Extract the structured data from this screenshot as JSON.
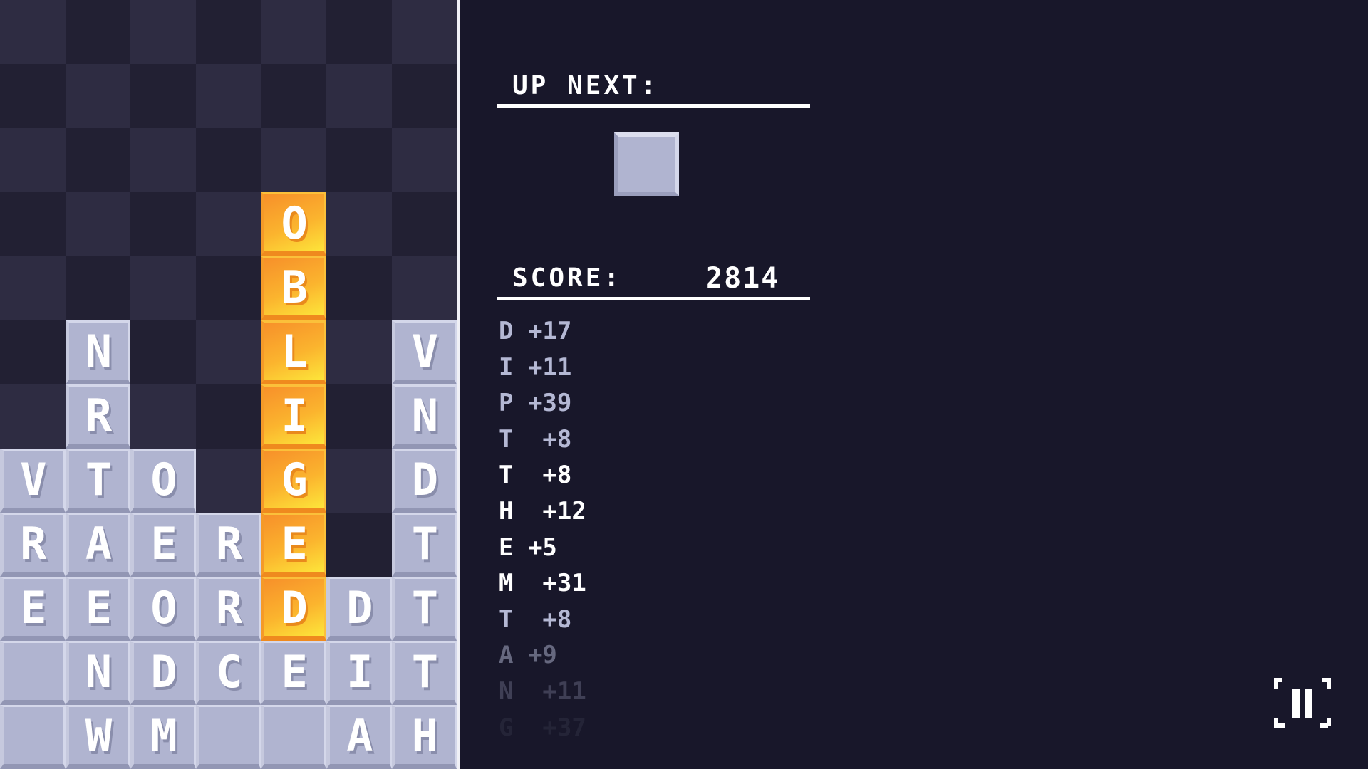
{
  "board": {
    "columns": 7,
    "grid": [
      [
        null,
        null,
        null,
        null,
        null,
        null,
        null
      ],
      [
        null,
        null,
        null,
        null,
        null,
        null,
        null
      ],
      [
        null,
        null,
        null,
        null,
        null,
        null,
        null
      ],
      [
        null,
        null,
        null,
        null,
        {
          "l": "O",
          "hl": true
        },
        null,
        null
      ],
      [
        null,
        null,
        null,
        null,
        {
          "l": "B",
          "hl": true
        },
        null,
        null
      ],
      [
        null,
        "N",
        null,
        null,
        {
          "l": "L",
          "hl": true
        },
        null,
        "V"
      ],
      [
        null,
        "R",
        null,
        null,
        {
          "l": "I",
          "hl": true
        },
        null,
        "N"
      ],
      [
        "V",
        "T",
        "O",
        null,
        {
          "l": "G",
          "hl": true
        },
        null,
        "D"
      ],
      [
        "R",
        "A",
        "E",
        "R",
        {
          "l": "E",
          "hl": true
        },
        null,
        "T"
      ],
      [
        "E",
        "E",
        "O",
        "R",
        {
          "l": "D",
          "hl": true
        },
        "D",
        "T"
      ],
      [
        "",
        "N",
        "D",
        "C",
        "E",
        "I",
        "T"
      ],
      [
        "",
        "W",
        "M",
        "",
        "",
        "A",
        "H"
      ]
    ],
    "highlight_color": "#fbb42e",
    "tile_color": "#b0b4d0"
  },
  "up_next": {
    "label": "UP NEXT:",
    "tile_letter": ""
  },
  "score": {
    "label": "SCORE:",
    "value": "2814"
  },
  "history": [
    {
      "text": "D +17",
      "tone": "#b4b8d4",
      "opacity": 1
    },
    {
      "text": "I +11",
      "tone": "#b4b8d4",
      "opacity": 1
    },
    {
      "text": "P +39",
      "tone": "#b4b8d4",
      "opacity": 1
    },
    {
      "text": "T  +8",
      "tone": "#b4b8d4",
      "opacity": 1
    },
    {
      "text": "T  +8",
      "tone": "#ffffff",
      "opacity": 1
    },
    {
      "text": "H  +12",
      "tone": "#ffffff",
      "opacity": 1
    },
    {
      "text": "E +5",
      "tone": "#ffffff",
      "opacity": 1
    },
    {
      "text": "M  +31",
      "tone": "#ffffff",
      "opacity": 1
    },
    {
      "text": "T  +8",
      "tone": "#b4b8d4",
      "opacity": 1
    },
    {
      "text": "A +9",
      "tone": "#b4b8d4",
      "opacity": 0.5
    },
    {
      "text": "N  +11",
      "tone": "#b4b8d4",
      "opacity": 0.25
    },
    {
      "text": "G  +37",
      "tone": "#b4b8d4",
      "opacity": 0.08
    }
  ],
  "controls": {
    "pause_icon": "pause-icon"
  }
}
